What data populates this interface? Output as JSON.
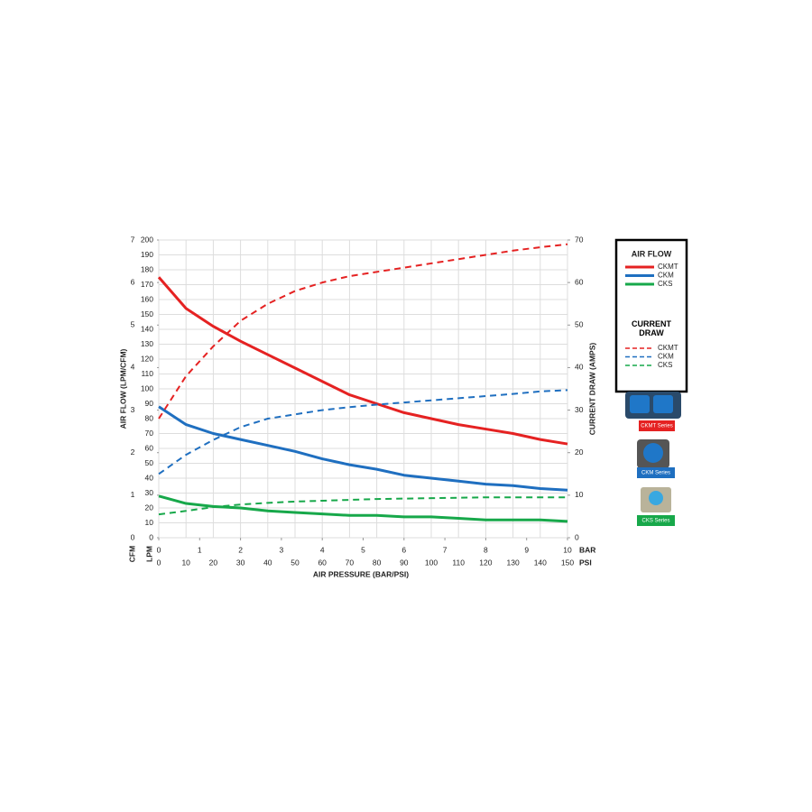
{
  "chart_data": {
    "type": "line",
    "x_title": "AIR PRESSURE (BAR/PSI)",
    "y_title": "AIR FLOW (LPM/CFM)",
    "y2_title": "CURRENT DRAW (AMPS)",
    "x_unit": "PSI",
    "x2_unit": "BAR",
    "y_unit": "LPM",
    "y3_unit": "CFM",
    "x": [
      0,
      10,
      20,
      30,
      40,
      50,
      60,
      70,
      80,
      90,
      100,
      110,
      120,
      130,
      140,
      150
    ],
    "xlim": [
      0,
      150
    ],
    "xticks": [
      0,
      10,
      20,
      30,
      40,
      50,
      60,
      70,
      80,
      90,
      100,
      110,
      120,
      130,
      140,
      150
    ],
    "x2lim": [
      0,
      10
    ],
    "x2ticks": [
      0,
      1,
      2,
      3,
      4,
      5,
      6,
      7,
      8,
      9,
      10
    ],
    "ylim": [
      0,
      200
    ],
    "yticks": [
      0,
      10,
      20,
      30,
      40,
      50,
      60,
      70,
      80,
      90,
      100,
      110,
      120,
      130,
      140,
      150,
      160,
      170,
      180,
      190,
      200
    ],
    "y2lim": [
      0,
      70
    ],
    "y2ticks": [
      0,
      10,
      20,
      30,
      40,
      50,
      60,
      70
    ],
    "y3lim": [
      0,
      7
    ],
    "y3ticks": [
      0,
      1,
      2,
      3,
      4,
      5,
      6,
      7
    ],
    "grid": true,
    "legend_titles": [
      "AIR FLOW",
      "CURRENT DRAW"
    ],
    "series": [
      {
        "name": "CKMT",
        "color": "#e52222",
        "dashed": false,
        "values": [
          175,
          154,
          142,
          132,
          123,
          114,
          105,
          96,
          90,
          84,
          80,
          76,
          73,
          70,
          66,
          63
        ]
      },
      {
        "name": "CKM",
        "color": "#1f6fc0",
        "dashed": false,
        "values": [
          88,
          76,
          70,
          66,
          62,
          58,
          53,
          49,
          46,
          42,
          40,
          38,
          36,
          35,
          33,
          32
        ]
      },
      {
        "name": "CKS",
        "color": "#17a84a",
        "dashed": false,
        "values": [
          28,
          23,
          21,
          20,
          18,
          17,
          16,
          15,
          15,
          14,
          14,
          13,
          12,
          12,
          12,
          11
        ]
      },
      {
        "name": "CKMT",
        "color": "#e52222",
        "dashed": true,
        "axis": "y2",
        "values": [
          28,
          38,
          45,
          51,
          55,
          58,
          60,
          61.5,
          62.5,
          63.5,
          64.5,
          65.5,
          66.5,
          67.5,
          68.3,
          69
        ]
      },
      {
        "name": "CKM",
        "color": "#1f6fc0",
        "dashed": true,
        "axis": "y2",
        "values": [
          15,
          19.5,
          23,
          26,
          28,
          29,
          30,
          30.7,
          31.3,
          31.8,
          32.3,
          32.8,
          33.3,
          33.8,
          34.4,
          34.7
        ]
      },
      {
        "name": "CKS",
        "color": "#17a84a",
        "dashed": true,
        "axis": "y2",
        "values": [
          5.5,
          6.3,
          7.2,
          7.8,
          8.2,
          8.5,
          8.7,
          8.9,
          9.1,
          9.2,
          9.3,
          9.4,
          9.5,
          9.5,
          9.5,
          9.5
        ]
      }
    ]
  },
  "products": [
    {
      "label": "CKMT Series",
      "color": "#e52222"
    },
    {
      "label": "CKM Series",
      "color": "#1f6fc0"
    },
    {
      "label": "CKS Series",
      "color": "#17a84a"
    }
  ]
}
